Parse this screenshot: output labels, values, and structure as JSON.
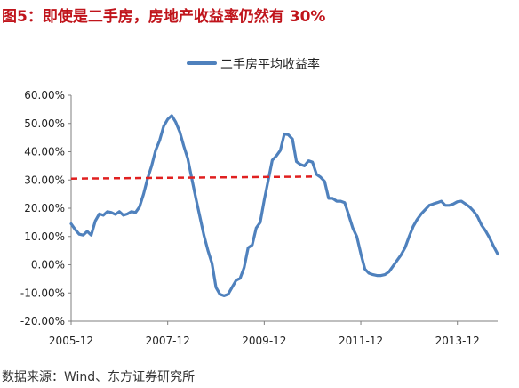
{
  "header": {
    "title": "图5：即使是二手房，房地产收益率仍然有 30%"
  },
  "footer": {
    "source": "数据来源：Wind、东方证券研究所"
  },
  "colors": {
    "title": "#c0141b",
    "series": "#4f81bd",
    "reference_line": "#e02020",
    "axis": "#7f7f7f"
  },
  "chart_data": {
    "type": "line",
    "legend": {
      "position": "top-center"
    },
    "grid": false,
    "ylim": [
      -20,
      60
    ],
    "yticks": [
      -20,
      -10,
      0,
      10,
      20,
      30,
      40,
      50,
      60
    ],
    "ytick_labels": [
      "-20.00%",
      "-10.00%",
      "0.00%",
      "10.00%",
      "20.00%",
      "30.00%",
      "40.00%",
      "50.00%",
      "60.00%"
    ],
    "x_tick_labels": [
      "2005-12",
      "2007-12",
      "2009-12",
      "2011-12",
      "2013-12"
    ],
    "x_tick_positions": [
      2005.9167,
      2007.9167,
      2009.9167,
      2011.9167,
      2013.9167
    ],
    "xlim": [
      2005.9167,
      2014.75
    ],
    "series": [
      {
        "name": "二手房平均收益率",
        "style": "solid",
        "x": [
          2005.9167,
          2006.0,
          2006.0833,
          2006.1667,
          2006.25,
          2006.3333,
          2006.4167,
          2006.5,
          2006.5833,
          2006.6667,
          2006.75,
          2006.8333,
          2006.9167,
          2007.0,
          2007.0833,
          2007.1667,
          2007.25,
          2007.3333,
          2007.4167,
          2007.5,
          2007.5833,
          2007.6667,
          2007.75,
          2007.8333,
          2007.9167,
          2008.0,
          2008.0833,
          2008.1667,
          2008.25,
          2008.3333,
          2008.4167,
          2008.5,
          2008.5833,
          2008.6667,
          2008.75,
          2008.8333,
          2008.9167,
          2009.0,
          2009.0833,
          2009.1667,
          2009.25,
          2009.3333,
          2009.4167,
          2009.5,
          2009.5833,
          2009.6667,
          2009.75,
          2009.8333,
          2009.9167,
          2010.0,
          2010.0833,
          2010.1667,
          2010.25,
          2010.3333,
          2010.4167,
          2010.5,
          2010.5833,
          2010.6667,
          2010.75,
          2010.8333,
          2010.9167,
          2011.0,
          2011.0833,
          2011.1667,
          2011.25,
          2011.3333,
          2011.4167,
          2011.5,
          2011.5833,
          2011.6667,
          2011.75,
          2011.8333,
          2011.9167,
          2012.0,
          2012.0833,
          2012.1667,
          2012.25,
          2012.3333,
          2012.4167,
          2012.5,
          2012.5833,
          2012.6667,
          2012.75,
          2012.8333,
          2012.9167,
          2013.0,
          2013.0833,
          2013.1667,
          2013.25,
          2013.3333,
          2013.4167,
          2013.5,
          2013.5833,
          2013.6667,
          2013.75,
          2013.8333,
          2013.9167,
          2014.0,
          2014.0833,
          2014.1667,
          2014.25,
          2014.3333,
          2014.4167,
          2014.5,
          2014.5833,
          2014.6667,
          2014.75
        ],
        "values": [
          14.5,
          12.5,
          10.8,
          10.5,
          11.8,
          10.5,
          15.5,
          18.0,
          17.5,
          18.8,
          18.5,
          17.8,
          18.8,
          17.5,
          18.0,
          18.8,
          18.5,
          20.5,
          25.0,
          30.5,
          35.0,
          40.5,
          44.0,
          49.0,
          51.5,
          52.8,
          50.5,
          47.0,
          42.0,
          37.5,
          30.5,
          23.5,
          17.0,
          10.5,
          5.0,
          0.5,
          -8.0,
          -10.5,
          -11.0,
          -10.5,
          -8.0,
          -5.5,
          -4.8,
          -1.0,
          6.0,
          7.0,
          13.0,
          15.0,
          23.0,
          30.0,
          37.0,
          38.5,
          40.5,
          46.3,
          46.0,
          44.5,
          36.5,
          35.5,
          35.0,
          36.8,
          36.3,
          32.0,
          31.0,
          29.5,
          23.5,
          23.5,
          22.5,
          22.5,
          22.0,
          17.5,
          13.0,
          10.0,
          4.0,
          -1.5,
          -3.0,
          -3.5,
          -3.8,
          -3.8,
          -3.5,
          -2.5,
          -0.5,
          1.5,
          3.5,
          6.0,
          10.0,
          13.5,
          16.0,
          18.0,
          19.5,
          21.0,
          21.5,
          22.0,
          22.5,
          21.0,
          21.0,
          21.5,
          22.3,
          22.5,
          21.5,
          20.5,
          19.0,
          17.0,
          14.0,
          12.0,
          9.5,
          6.5,
          3.8
        ]
      },
      {
        "style": "dashed",
        "x": [
          2005.9167,
          2010.9167
        ],
        "values": [
          30.5,
          31.2
        ]
      }
    ]
  }
}
